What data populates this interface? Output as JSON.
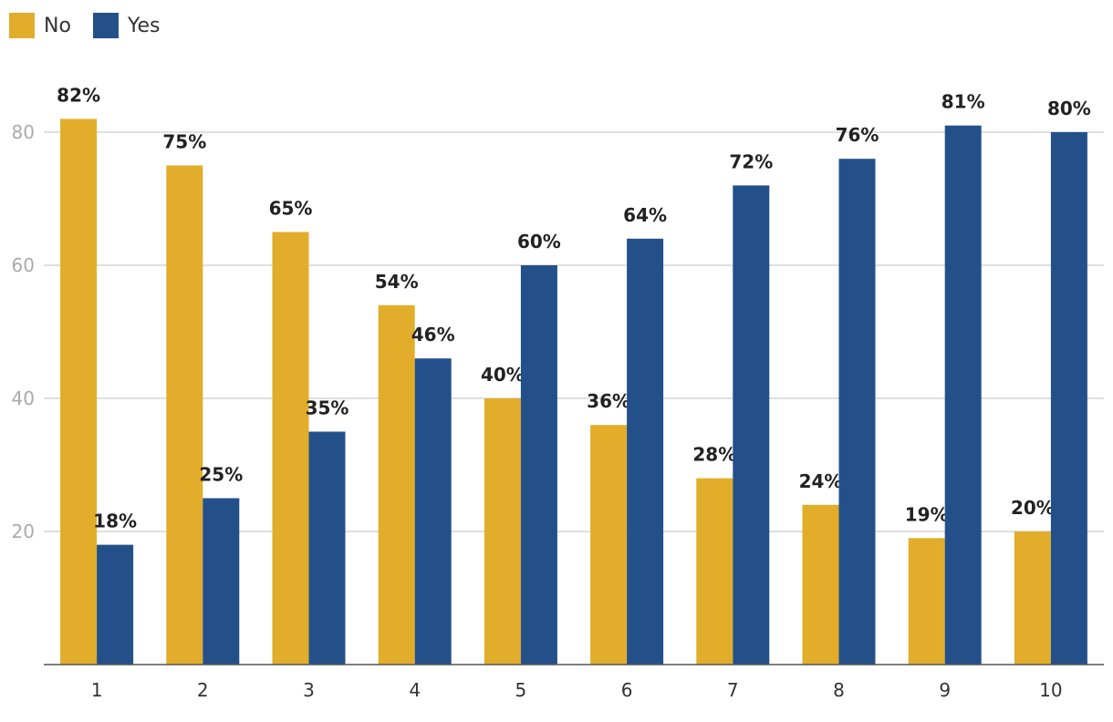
{
  "chart_data": {
    "type": "bar",
    "title": "",
    "xlabel": "",
    "ylabel": "",
    "categories": [
      "1",
      "2",
      "3",
      "4",
      "5",
      "6",
      "7",
      "8",
      "9",
      "10"
    ],
    "series": [
      {
        "name": "No",
        "color": "#e1ad2a",
        "values": [
          82,
          75,
          65,
          54,
          40,
          36,
          28,
          24,
          19,
          20
        ],
        "labels": [
          "82%",
          "75%",
          "65%",
          "54%",
          "40%",
          "36%",
          "28%",
          "24%",
          "19%",
          "20%"
        ]
      },
      {
        "name": "Yes",
        "color": "#24508a",
        "values": [
          18,
          25,
          35,
          46,
          60,
          64,
          72,
          76,
          81,
          80
        ],
        "labels": [
          "18%",
          "25%",
          "35%",
          "46%",
          "60%",
          "64%",
          "72%",
          "76%",
          "81%",
          "80%"
        ]
      }
    ],
    "ylim": [
      0,
      80
    ],
    "yticks": [
      "20",
      "40",
      "60",
      "80"
    ],
    "grid": true,
    "legend_position": "top-left",
    "axis_label_color": "#aaaaaa",
    "category_label_color": "#333333",
    "grid_color": "#cccccc"
  }
}
